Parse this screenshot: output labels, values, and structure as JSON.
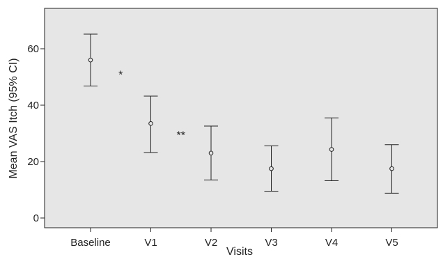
{
  "chart_data": {
    "type": "errorbar",
    "xlabel": "Visits",
    "ylabel": "Mean VAS Itch (95% CI)",
    "categories": [
      "Baseline",
      "V1",
      "V2",
      "V3",
      "V4",
      "V5"
    ],
    "series": [
      {
        "means": [
          56,
          33.5,
          23,
          17.5,
          24.3,
          17.5
        ],
        "lower": [
          46.8,
          23.2,
          13.5,
          9.5,
          13.2,
          8.8
        ],
        "upper": [
          65.2,
          43.2,
          32.6,
          25.6,
          35.5,
          26.0
        ]
      }
    ],
    "yticks": [
      0,
      20,
      40,
      60
    ],
    "ylim": [
      -2,
      73
    ],
    "grid": false,
    "background": "#e6e6e6",
    "annotations": [
      {
        "text": "*",
        "between": [
          "Baseline",
          "V1"
        ],
        "y": 51
      },
      {
        "text": "**",
        "between": [
          "V1",
          "V2"
        ],
        "y": 29.5
      }
    ]
  }
}
